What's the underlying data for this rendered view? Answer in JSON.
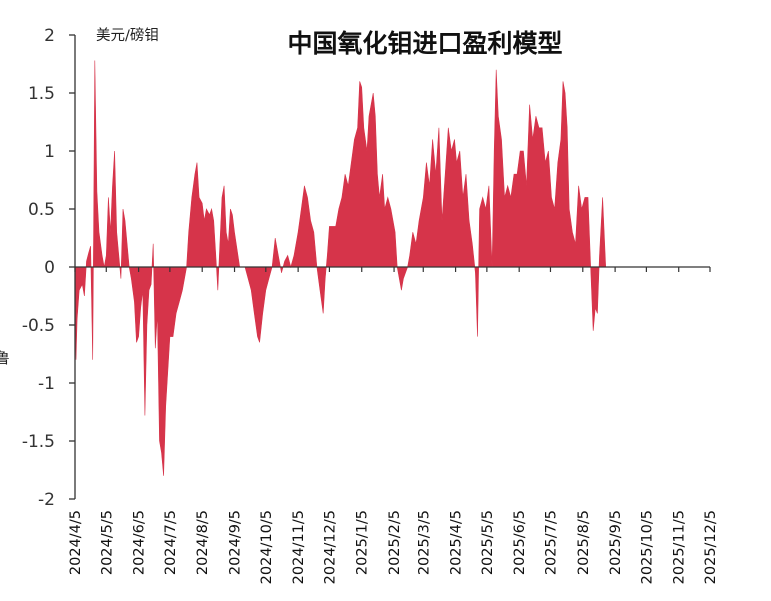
{
  "chart_data": {
    "type": "area",
    "title": "中国氧化钼进口盈利模型",
    "ylabel": "美元/磅钼",
    "side_label": "吕鲁",
    "ylim": [
      -2,
      2
    ],
    "y_ticks": [
      "2",
      "1.5",
      "1",
      "0.5",
      "0",
      "-0.5",
      "-1",
      "-1.5",
      "-2"
    ],
    "x_ticks": [
      "2024/4/5",
      "2024/5/5",
      "2024/6/5",
      "2024/7/5",
      "2024/8/5",
      "2024/9/5",
      "2024/10/5",
      "2024/11/5",
      "2024/12/5",
      "2025/1/5",
      "2025/2/5",
      "2025/3/5",
      "2025/4/5",
      "2025/5/5",
      "2025/6/5",
      "2025/7/5",
      "2025/8/5",
      "2025/9/5",
      "2025/10/5",
      "2025/11/5",
      "2025/12/5"
    ],
    "series": [
      {
        "color": "#d6344a",
        "points": [
          [
            "2024/4/5",
            -0.35
          ],
          [
            "2024/4/6",
            -0.8
          ],
          [
            "2024/4/7",
            -0.45
          ],
          [
            "2024/4/9",
            -0.2
          ],
          [
            "2024/4/12",
            -0.15
          ],
          [
            "2024/4/14",
            -0.25
          ],
          [
            "2024/4/16",
            0.05
          ],
          [
            "2024/4/18",
            0.12
          ],
          [
            "2024/4/20",
            0.18
          ],
          [
            "2024/4/22",
            -0.8
          ],
          [
            "2024/4/24",
            1.78
          ],
          [
            "2024/4/26",
            0.65
          ],
          [
            "2024/4/28",
            0.3
          ],
          [
            "2024/5/1",
            0.1
          ],
          [
            "2024/5/3",
            0.0
          ],
          [
            "2024/5/5",
            0.1
          ],
          [
            "2024/5/7",
            0.6
          ],
          [
            "2024/5/9",
            0.3
          ],
          [
            "2024/5/11",
            0.7
          ],
          [
            "2024/5/13",
            1.0
          ],
          [
            "2024/5/15",
            0.3
          ],
          [
            "2024/5/17",
            0.1
          ],
          [
            "2024/5/19",
            -0.1
          ],
          [
            "2024/5/21",
            0.5
          ],
          [
            "2024/5/23",
            0.4
          ],
          [
            "2024/5/25",
            0.2
          ],
          [
            "2024/5/27",
            0.0
          ],
          [
            "2024/5/29",
            -0.1
          ],
          [
            "2024/6/1",
            -0.3
          ],
          [
            "2024/6/3",
            -0.65
          ],
          [
            "2024/6/5",
            -0.6
          ],
          [
            "2024/6/7",
            -0.35
          ],
          [
            "2024/6/9",
            -0.2
          ],
          [
            "2024/6/11",
            -1.28
          ],
          [
            "2024/6/13",
            -0.5
          ],
          [
            "2024/6/15",
            -0.2
          ],
          [
            "2024/6/17",
            -0.15
          ],
          [
            "2024/6/19",
            0.2
          ],
          [
            "2024/6/21",
            -0.7
          ],
          [
            "2024/6/23",
            -0.4
          ],
          [
            "2024/6/25",
            -1.5
          ],
          [
            "2024/6/27",
            -1.6
          ],
          [
            "2024/6/29",
            -1.8
          ],
          [
            "2024/7/1",
            -1.2
          ],
          [
            "2024/7/3",
            -0.9
          ],
          [
            "2024/7/5",
            -0.6
          ],
          [
            "2024/7/8",
            -0.6
          ],
          [
            "2024/7/11",
            -0.4
          ],
          [
            "2024/7/14",
            -0.3
          ],
          [
            "2024/7/17",
            -0.2
          ],
          [
            "2024/7/21",
            0.0
          ],
          [
            "2024/7/23",
            0.3
          ],
          [
            "2024/7/26",
            0.6
          ],
          [
            "2024/7/29",
            0.8
          ],
          [
            "2024/7/31",
            0.9
          ],
          [
            "2024/8/2",
            0.6
          ],
          [
            "2024/8/5",
            0.55
          ],
          [
            "2024/8/7",
            0.4
          ],
          [
            "2024/8/9",
            0.5
          ],
          [
            "2024/8/12",
            0.45
          ],
          [
            "2024/8/14",
            0.5
          ],
          [
            "2024/8/16",
            0.4
          ],
          [
            "2024/8/18",
            0.1
          ],
          [
            "2024/8/20",
            -0.2
          ],
          [
            "2024/8/22",
            0.2
          ],
          [
            "2024/8/24",
            0.6
          ],
          [
            "2024/8/26",
            0.7
          ],
          [
            "2024/8/28",
            0.3
          ],
          [
            "2024/8/30",
            0.2
          ],
          [
            "2024/9/1",
            0.5
          ],
          [
            "2024/9/3",
            0.45
          ],
          [
            "2024/9/5",
            0.3
          ],
          [
            "2024/9/10",
            0.0
          ],
          [
            "2024/9/15",
            0.0
          ],
          [
            "2024/9/18",
            -0.1
          ],
          [
            "2024/9/21",
            -0.2
          ],
          [
            "2024/9/24",
            -0.4
          ],
          [
            "2024/9/27",
            -0.6
          ],
          [
            "2024/9/29",
            -0.65
          ],
          [
            "2024/10/2",
            -0.4
          ],
          [
            "2024/10/5",
            -0.2
          ],
          [
            "2024/10/8",
            -0.1
          ],
          [
            "2024/10/11",
            0.0
          ],
          [
            "2024/10/14",
            0.25
          ],
          [
            "2024/10/17",
            0.1
          ],
          [
            "2024/10/20",
            -0.05
          ],
          [
            "2024/10/23",
            0.05
          ],
          [
            "2024/10/26",
            0.1
          ],
          [
            "2024/10/29",
            0.0
          ],
          [
            "2024/11/1",
            0.1
          ],
          [
            "2024/11/5",
            0.3
          ],
          [
            "2024/11/8",
            0.5
          ],
          [
            "2024/11/11",
            0.7
          ],
          [
            "2024/11/14",
            0.6
          ],
          [
            "2024/11/17",
            0.4
          ],
          [
            "2024/11/20",
            0.3
          ],
          [
            "2024/11/23",
            0.0
          ],
          [
            "2024/11/26",
            -0.2
          ],
          [
            "2024/11/29",
            -0.4
          ],
          [
            "2024/12/1",
            -0.1
          ],
          [
            "2024/12/3",
            0.1
          ],
          [
            "2024/12/5",
            0.35
          ],
          [
            "2024/12/8",
            0.35
          ],
          [
            "2024/12/11",
            0.35
          ],
          [
            "2024/12/14",
            0.5
          ],
          [
            "2024/12/17",
            0.6
          ],
          [
            "2024/12/20",
            0.8
          ],
          [
            "2024/12/23",
            0.7
          ],
          [
            "2024/12/26",
            0.9
          ],
          [
            "2024/12/29",
            1.1
          ],
          [
            "2025/1/1",
            1.2
          ],
          [
            "2025/1/3",
            1.6
          ],
          [
            "2025/1/5",
            1.55
          ],
          [
            "2025/1/7",
            1.2
          ],
          [
            "2025/1/10",
            1.0
          ],
          [
            "2025/1/12",
            1.3
          ],
          [
            "2025/1/14",
            1.4
          ],
          [
            "2025/1/16",
            1.5
          ],
          [
            "2025/1/18",
            1.3
          ],
          [
            "2025/1/20",
            0.8
          ],
          [
            "2025/1/22",
            0.6
          ],
          [
            "2025/1/25",
            0.8
          ],
          [
            "2025/1/27",
            0.5
          ],
          [
            "2025/1/30",
            0.6
          ],
          [
            "2025/2/2",
            0.5
          ],
          [
            "2025/2/4",
            0.4
          ],
          [
            "2025/2/6",
            0.3
          ],
          [
            "2025/2/8",
            0.0
          ],
          [
            "2025/2/10",
            -0.1
          ],
          [
            "2025/2/12",
            -0.2
          ],
          [
            "2025/2/14",
            -0.1
          ],
          [
            "2025/2/16",
            -0.05
          ],
          [
            "2025/2/18",
            0.0
          ],
          [
            "2025/2/20",
            0.1
          ],
          [
            "2025/2/23",
            0.3
          ],
          [
            "2025/2/26",
            0.2
          ],
          [
            "2025/3/1",
            0.4
          ],
          [
            "2025/3/5",
            0.6
          ],
          [
            "2025/3/8",
            0.9
          ],
          [
            "2025/3/11",
            0.7
          ],
          [
            "2025/3/14",
            1.1
          ],
          [
            "2025/3/17",
            0.8
          ],
          [
            "2025/3/20",
            1.2
          ],
          [
            "2025/3/23",
            0.4
          ],
          [
            "2025/3/26",
            0.8
          ],
          [
            "2025/3/29",
            1.2
          ],
          [
            "2025/4/1",
            1.0
          ],
          [
            "2025/4/4",
            1.1
          ],
          [
            "2025/4/6",
            0.9
          ],
          [
            "2025/4/9",
            1.0
          ],
          [
            "2025/4/12",
            0.6
          ],
          [
            "2025/4/15",
            0.8
          ],
          [
            "2025/4/18",
            0.4
          ],
          [
            "2025/4/21",
            0.2
          ],
          [
            "2025/4/24",
            -0.05
          ],
          [
            "2025/4/26",
            -0.6
          ],
          [
            "2025/4/28",
            0.5
          ],
          [
            "2025/5/1",
            0.6
          ],
          [
            "2025/5/4",
            0.5
          ],
          [
            "2025/5/7",
            0.7
          ],
          [
            "2025/5/10",
            0.0
          ],
          [
            "2025/5/12",
            1.0
          ],
          [
            "2025/5/14",
            1.7
          ],
          [
            "2025/5/16",
            1.3
          ],
          [
            "2025/5/19",
            1.1
          ],
          [
            "2025/5/22",
            0.6
          ],
          [
            "2025/5/25",
            0.7
          ],
          [
            "2025/5/28",
            0.6
          ],
          [
            "2025/5/31",
            0.8
          ],
          [
            "2025/6/3",
            0.8
          ],
          [
            "2025/6/6",
            1.0
          ],
          [
            "2025/6/9",
            1.0
          ],
          [
            "2025/6/12",
            0.7
          ],
          [
            "2025/6/15",
            1.4
          ],
          [
            "2025/6/18",
            1.1
          ],
          [
            "2025/6/21",
            1.3
          ],
          [
            "2025/6/24",
            1.2
          ],
          [
            "2025/6/27",
            1.2
          ],
          [
            "2025/6/30",
            0.9
          ],
          [
            "2025/7/3",
            1.0
          ],
          [
            "2025/7/6",
            0.6
          ],
          [
            "2025/7/9",
            0.5
          ],
          [
            "2025/7/12",
            0.9
          ],
          [
            "2025/7/15",
            1.1
          ],
          [
            "2025/7/17",
            1.6
          ],
          [
            "2025/7/19",
            1.5
          ],
          [
            "2025/7/21",
            1.2
          ],
          [
            "2025/7/23",
            0.5
          ],
          [
            "2025/7/26",
            0.3
          ],
          [
            "2025/7/29",
            0.2
          ],
          [
            "2025/8/1",
            0.7
          ],
          [
            "2025/8/4",
            0.5
          ],
          [
            "2025/8/7",
            0.6
          ],
          [
            "2025/8/10",
            0.6
          ],
          [
            "2025/8/13",
            -0.1
          ],
          [
            "2025/8/15",
            -0.55
          ],
          [
            "2025/8/17",
            -0.35
          ],
          [
            "2025/8/19",
            -0.4
          ],
          [
            "2025/8/21",
            0.1
          ],
          [
            "2025/8/24",
            0.6
          ],
          [
            "2025/8/27",
            0.0
          ],
          [
            "2025/8/30",
            0.0
          ],
          [
            "2025/9/2",
            0.0
          ],
          [
            "2025/9/5",
            0.0
          ],
          [
            "2025/9/10",
            0.0
          ]
        ]
      }
    ]
  }
}
